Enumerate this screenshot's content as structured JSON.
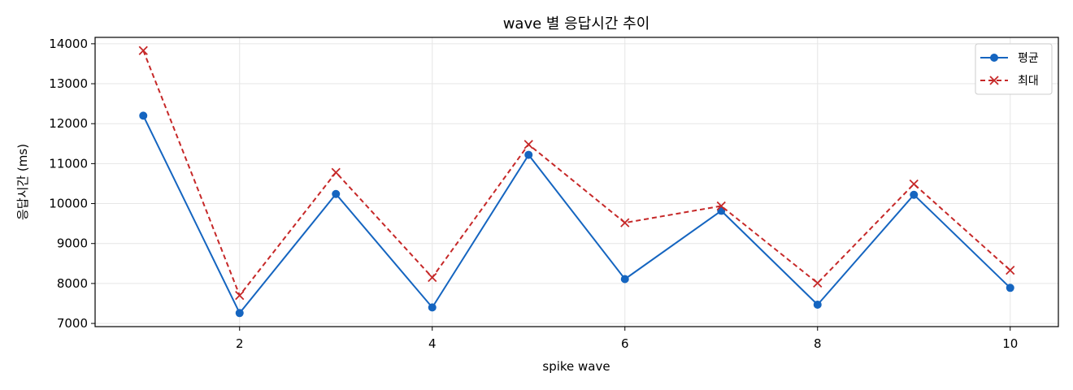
{
  "chart_data": {
    "type": "line",
    "title": "wave 별 응답시간 추이",
    "xlabel": "spike wave",
    "ylabel": "응답시간 (ms)",
    "x": [
      1,
      2,
      3,
      4,
      5,
      6,
      7,
      8,
      9,
      10
    ],
    "xlim": [
      0.5,
      10.5
    ],
    "ylim": [
      6920,
      14160
    ],
    "xticks": [
      2,
      4,
      6,
      8,
      10
    ],
    "yticks": [
      7000,
      8000,
      9000,
      10000,
      11000,
      12000,
      13000,
      14000
    ],
    "grid": true,
    "legend_position": "top-right",
    "series": [
      {
        "name": "평균",
        "color": "#1565c0",
        "line_style": "solid",
        "marker": "circle",
        "values": [
          12200,
          7260,
          10240,
          7400,
          11220,
          8110,
          9820,
          7470,
          10220,
          7890
        ]
      },
      {
        "name": "최대",
        "color": "#c62828",
        "line_style": "dashed",
        "marker": "x",
        "values": [
          13830,
          7700,
          10780,
          8150,
          11480,
          9520,
          9940,
          8010,
          10490,
          8330
        ]
      }
    ]
  }
}
